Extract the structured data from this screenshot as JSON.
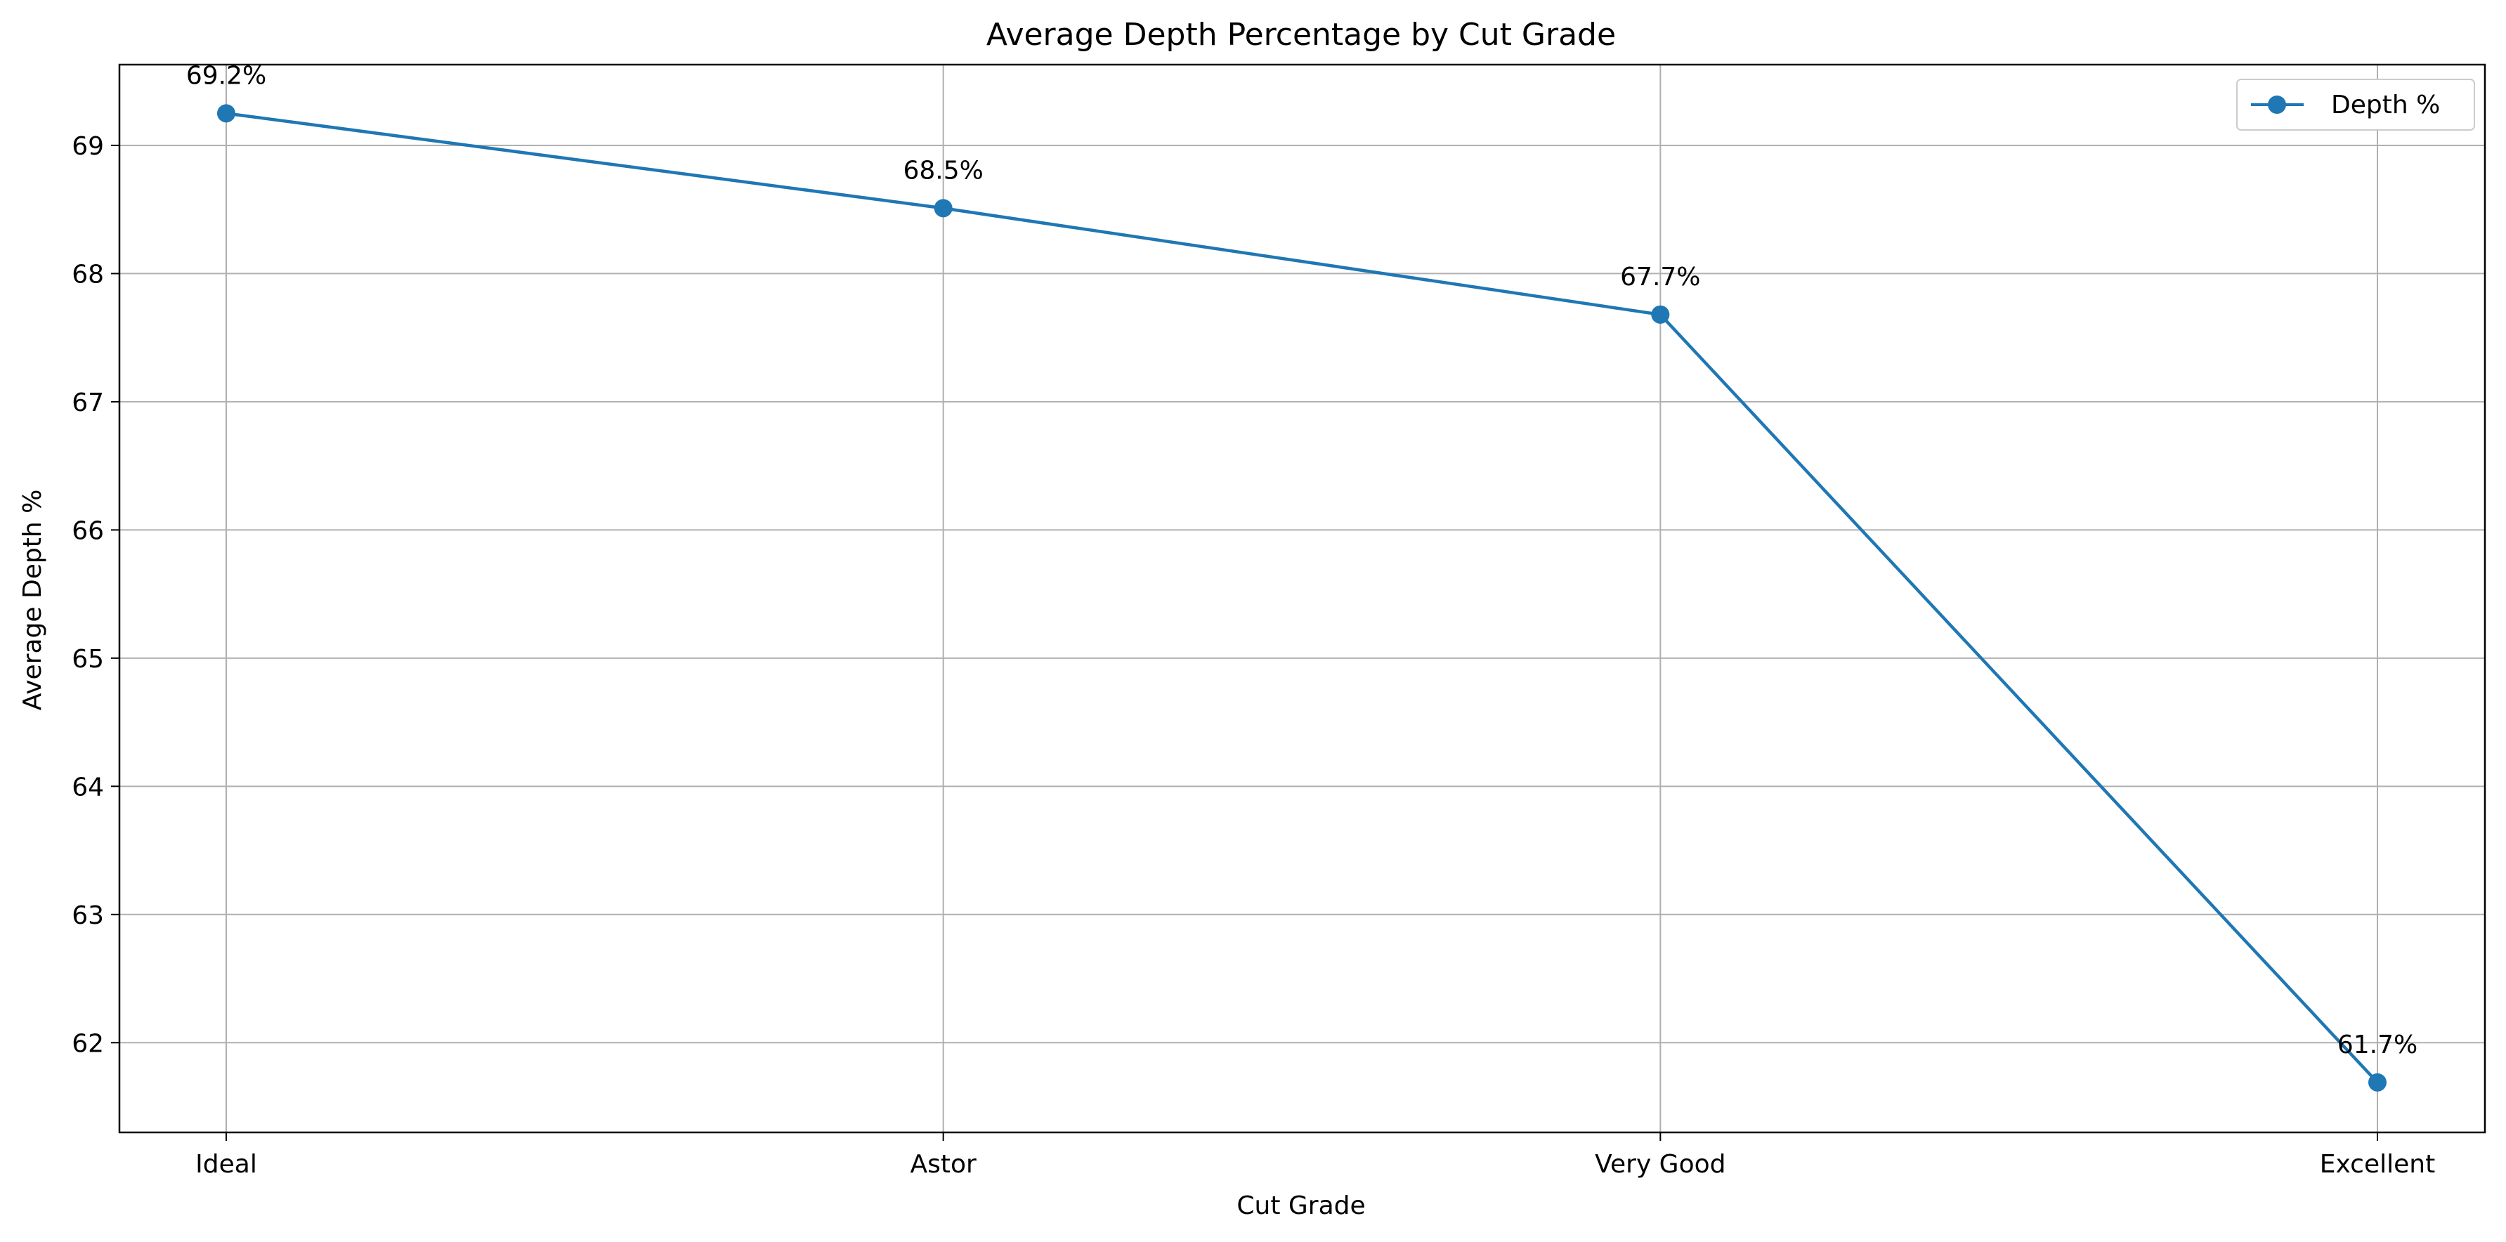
{
  "chart_data": {
    "type": "line",
    "title": "Average Depth Percentage by Cut Grade",
    "xlabel": "Cut Grade",
    "ylabel": "Average Depth %",
    "categories": [
      "Ideal",
      "Astor",
      "Very Good",
      "Excellent"
    ],
    "series": [
      {
        "name": "Depth %",
        "values": [
          69.25,
          68.51,
          67.68,
          61.69
        ],
        "data_labels": [
          "69.2%",
          "68.5%",
          "67.7%",
          "61.7%"
        ],
        "color": "#1f77b4",
        "marker": "circle"
      }
    ],
    "ylim": [
      61.3,
      69.63
    ],
    "yticks": [
      62,
      63,
      64,
      65,
      66,
      67,
      68,
      69
    ],
    "grid": true,
    "legend_position": "top-right"
  }
}
